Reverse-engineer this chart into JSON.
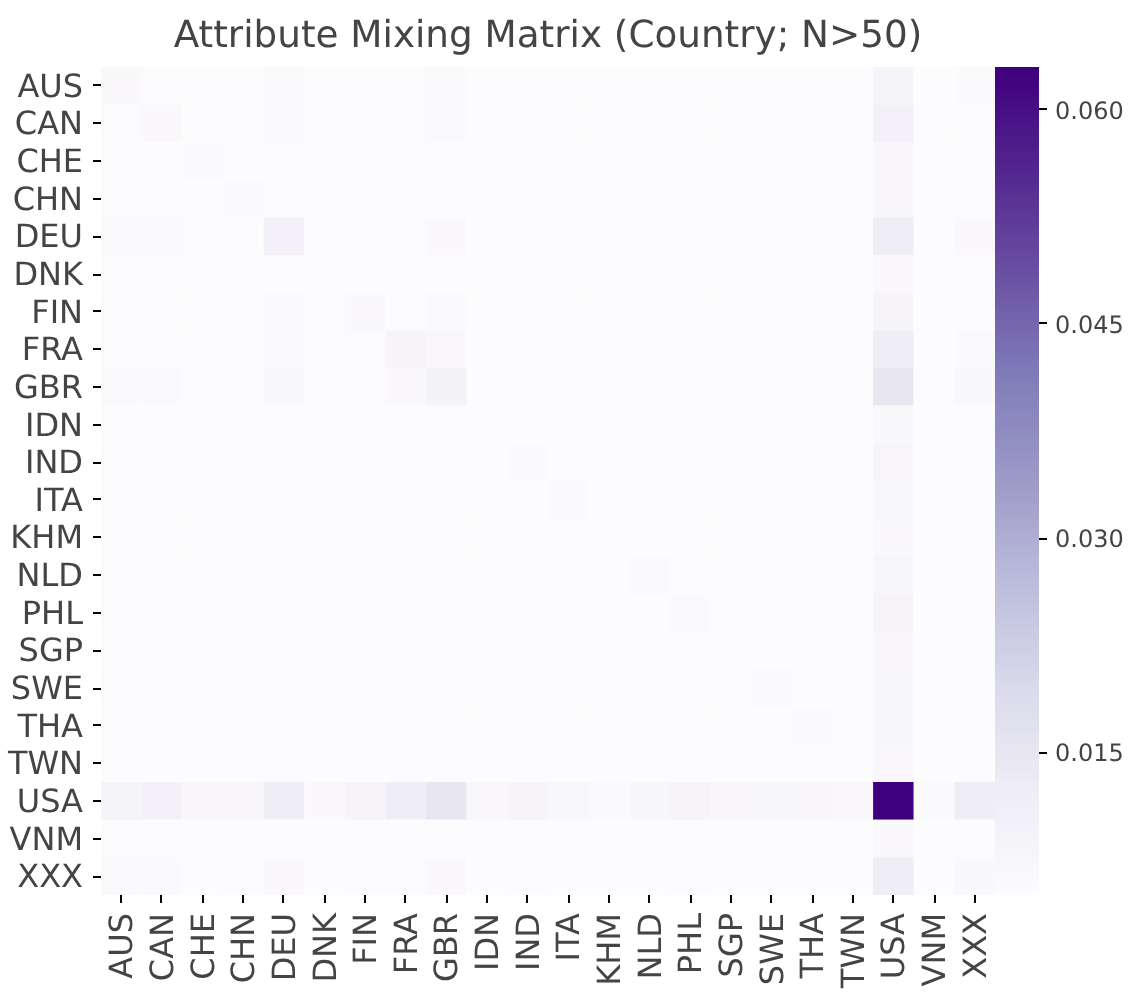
{
  "chart_data": {
    "type": "heatmap",
    "title": "Attribute Mixing Matrix (Country; N>50)",
    "categories": [
      "AUS",
      "CAN",
      "CHE",
      "CHN",
      "DEU",
      "DNK",
      "FIN",
      "FRA",
      "GBR",
      "IDN",
      "IND",
      "ITA",
      "KHM",
      "NLD",
      "PHL",
      "SGP",
      "SWE",
      "THA",
      "TWN",
      "USA",
      "VNM",
      "XXX"
    ],
    "y_categories": [
      "AUS",
      "CAN",
      "CHE",
      "CHN",
      "DEU",
      "DNK",
      "FIN",
      "FRA",
      "GBR",
      "IDN",
      "IND",
      "ITA",
      "KHM",
      "NLD",
      "PHL",
      "SGP",
      "SWE",
      "THA",
      "TWN",
      "USA",
      "VNM",
      "XXX"
    ],
    "cells": [
      [
        0.0065,
        0.0055,
        0.005,
        0.005,
        0.006,
        0.005,
        0.005,
        0.0055,
        0.006,
        0.005,
        0.0055,
        0.005,
        0.005,
        0.0055,
        0.005,
        0.005,
        0.0053,
        0.005,
        0.005,
        0.009,
        0.005,
        0.006
      ],
      [
        0.0055,
        0.0065,
        0.005,
        0.0052,
        0.006,
        0.005,
        0.0052,
        0.0055,
        0.006,
        0.005,
        0.0052,
        0.005,
        0.005,
        0.0052,
        0.005,
        0.005,
        0.005,
        0.005,
        0.005,
        0.01,
        0.005,
        0.0056
      ],
      [
        0.005,
        0.005,
        0.006,
        0.005,
        0.0055,
        0.005,
        0.005,
        0.005,
        0.0052,
        0.005,
        0.005,
        0.005,
        0.005,
        0.005,
        0.005,
        0.005,
        0.005,
        0.005,
        0.005,
        0.0075,
        0.005,
        0.0052
      ],
      [
        0.005,
        0.0052,
        0.005,
        0.006,
        0.005,
        0.005,
        0.005,
        0.005,
        0.0052,
        0.005,
        0.005,
        0.005,
        0.005,
        0.005,
        0.005,
        0.005,
        0.005,
        0.005,
        0.005,
        0.0075,
        0.005,
        0.0052
      ],
      [
        0.006,
        0.006,
        0.0055,
        0.005,
        0.01,
        0.005,
        0.0058,
        0.0058,
        0.0065,
        0.005,
        0.0055,
        0.005,
        0.0055,
        0.0055,
        0.0052,
        0.0052,
        0.0052,
        0.005,
        0.005,
        0.012,
        0.005,
        0.0065
      ],
      [
        0.005,
        0.005,
        0.005,
        0.005,
        0.0052,
        0.005,
        0.005,
        0.005,
        0.005,
        0.005,
        0.005,
        0.005,
        0.005,
        0.005,
        0.005,
        0.005,
        0.005,
        0.005,
        0.005,
        0.0065,
        0.005,
        0.005
      ],
      [
        0.0055,
        0.0055,
        0.0052,
        0.005,
        0.006,
        0.005,
        0.0065,
        0.0052,
        0.006,
        0.005,
        0.005,
        0.005,
        0.005,
        0.0052,
        0.005,
        0.005,
        0.005,
        0.005,
        0.005,
        0.0085,
        0.005,
        0.0052
      ],
      [
        0.0058,
        0.0058,
        0.0052,
        0.0052,
        0.0062,
        0.005,
        0.0055,
        0.0085,
        0.007,
        0.005,
        0.0055,
        0.0052,
        0.005,
        0.0055,
        0.0052,
        0.005,
        0.005,
        0.005,
        0.005,
        0.012,
        0.005,
        0.006
      ],
      [
        0.006,
        0.006,
        0.0052,
        0.0055,
        0.0068,
        0.005,
        0.0055,
        0.0065,
        0.0095,
        0.005,
        0.0058,
        0.0053,
        0.005,
        0.0055,
        0.0052,
        0.0052,
        0.0052,
        0.005,
        0.005,
        0.015,
        0.005,
        0.0068
      ],
      [
        0.005,
        0.005,
        0.005,
        0.005,
        0.0052,
        0.005,
        0.005,
        0.005,
        0.005,
        0.0058,
        0.005,
        0.005,
        0.005,
        0.0052,
        0.005,
        0.005,
        0.005,
        0.005,
        0.005,
        0.0068,
        0.005,
        0.0052
      ],
      [
        0.0055,
        0.0055,
        0.005,
        0.005,
        0.0055,
        0.005,
        0.005,
        0.0053,
        0.0053,
        0.005,
        0.006,
        0.005,
        0.005,
        0.0052,
        0.0052,
        0.005,
        0.0053,
        0.005,
        0.005,
        0.008,
        0.005,
        0.0053
      ],
      [
        0.005,
        0.005,
        0.005,
        0.005,
        0.0055,
        0.005,
        0.005,
        0.005,
        0.0053,
        0.005,
        0.005,
        0.006,
        0.005,
        0.005,
        0.005,
        0.005,
        0.005,
        0.005,
        0.005,
        0.0072,
        0.005,
        0.0052
      ],
      [
        0.005,
        0.005,
        0.005,
        0.005,
        0.0052,
        0.005,
        0.005,
        0.005,
        0.005,
        0.005,
        0.005,
        0.005,
        0.0055,
        0.005,
        0.005,
        0.005,
        0.005,
        0.005,
        0.005,
        0.0065,
        0.005,
        0.005
      ],
      [
        0.0055,
        0.005,
        0.005,
        0.005,
        0.0055,
        0.005,
        0.005,
        0.0053,
        0.0055,
        0.005,
        0.005,
        0.005,
        0.005,
        0.006,
        0.005,
        0.005,
        0.005,
        0.005,
        0.005,
        0.0078,
        0.005,
        0.0052
      ],
      [
        0.0055,
        0.0053,
        0.005,
        0.005,
        0.0055,
        0.005,
        0.0052,
        0.0052,
        0.0053,
        0.0052,
        0.0052,
        0.005,
        0.005,
        0.005,
        0.006,
        0.005,
        0.0052,
        0.0052,
        0.005,
        0.0085,
        0.005,
        0.0053
      ],
      [
        0.005,
        0.005,
        0.005,
        0.005,
        0.0053,
        0.005,
        0.005,
        0.005,
        0.0052,
        0.005,
        0.005,
        0.005,
        0.005,
        0.005,
        0.005,
        0.0058,
        0.005,
        0.005,
        0.005,
        0.0075,
        0.005,
        0.0052
      ],
      [
        0.0055,
        0.0055,
        0.0055,
        0.005,
        0.0055,
        0.005,
        0.0053,
        0.0055,
        0.0055,
        0.005,
        0.005,
        0.005,
        0.005,
        0.005,
        0.0052,
        0.005,
        0.0062,
        0.005,
        0.005,
        0.0078,
        0.005,
        0.0052
      ],
      [
        0.0053,
        0.005,
        0.005,
        0.005,
        0.0053,
        0.005,
        0.005,
        0.005,
        0.005,
        0.005,
        0.0053,
        0.005,
        0.005,
        0.005,
        0.0052,
        0.005,
        0.005,
        0.006,
        0.005,
        0.0078,
        0.005,
        0.0052
      ],
      [
        0.005,
        0.005,
        0.005,
        0.005,
        0.005,
        0.005,
        0.005,
        0.005,
        0.005,
        0.005,
        0.005,
        0.005,
        0.005,
        0.005,
        0.005,
        0.005,
        0.005,
        0.0052,
        0.0053,
        0.007,
        0.005,
        0.005
      ],
      [
        0.009,
        0.01,
        0.0075,
        0.0075,
        0.012,
        0.0065,
        0.0085,
        0.012,
        0.015,
        0.007,
        0.0085,
        0.0072,
        0.0062,
        0.0078,
        0.0085,
        0.0075,
        0.0078,
        0.0075,
        0.007,
        0.063,
        0.0062,
        0.012
      ],
      [
        0.005,
        0.005,
        0.005,
        0.005,
        0.0052,
        0.005,
        0.005,
        0.005,
        0.005,
        0.005,
        0.005,
        0.005,
        0.005,
        0.005,
        0.005,
        0.005,
        0.005,
        0.005,
        0.005,
        0.0065,
        0.0052,
        0.005
      ],
      [
        0.006,
        0.006,
        0.0053,
        0.0055,
        0.0065,
        0.005,
        0.0055,
        0.0058,
        0.0065,
        0.005,
        0.0055,
        0.0052,
        0.005,
        0.0053,
        0.0055,
        0.0052,
        0.0052,
        0.0052,
        0.005,
        0.012,
        0.005,
        0.0068
      ]
    ],
    "clim": [
      0.005,
      0.063
    ],
    "cticks": [
      0.015,
      {
        "value": 0.03,
        "label": "0.030"
      },
      0.045,
      {
        "value": 0.06,
        "label": "0.060"
      }
    ]
  }
}
